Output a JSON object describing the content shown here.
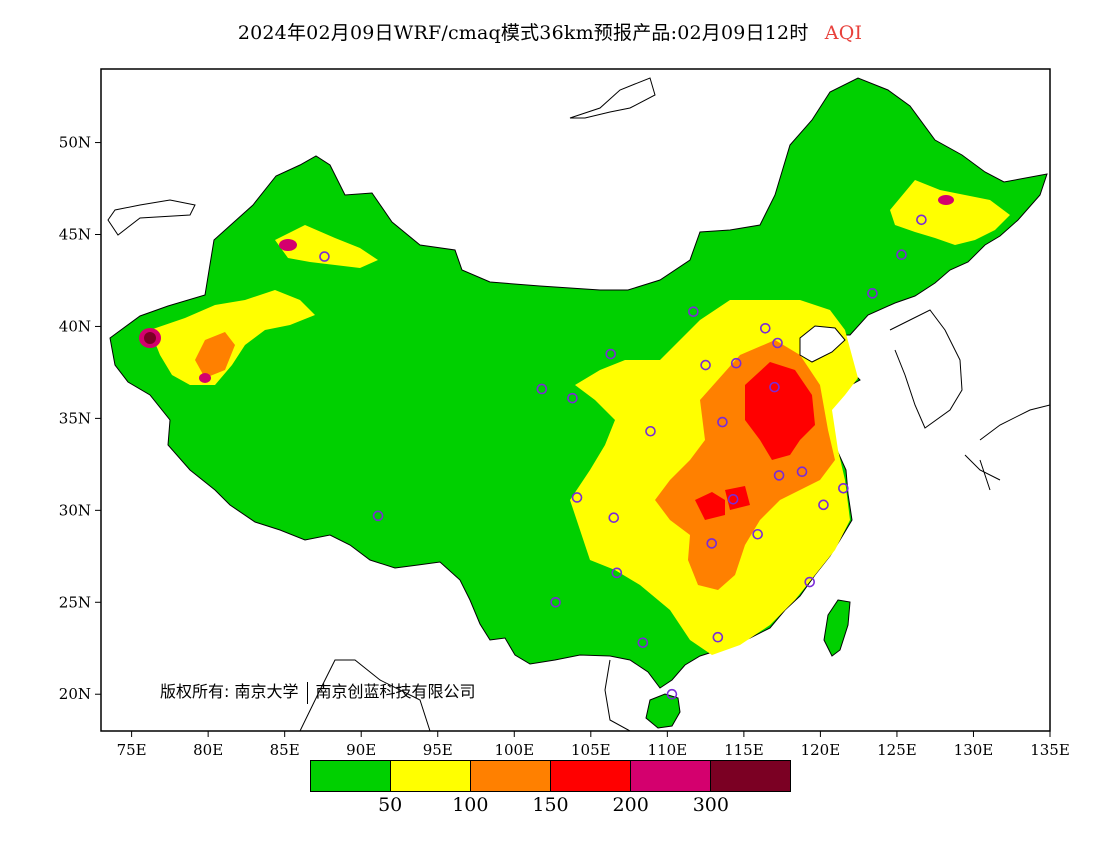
{
  "title": {
    "main": "2024年02月09日WRF/cmaq模式36km预报产品:02月09日12时",
    "product": "AQI",
    "product_color": "#e8413c"
  },
  "map": {
    "lon_range": [
      73,
      135
    ],
    "lat_range": [
      18,
      54
    ],
    "lon_ticks": [
      "75E",
      "80E",
      "85E",
      "90E",
      "95E",
      "100E",
      "105E",
      "110E",
      "115E",
      "120E",
      "125E",
      "130E",
      "135E"
    ],
    "lat_ticks": [
      "20N",
      "25N",
      "30N",
      "35N",
      "40N",
      "45N",
      "50N"
    ],
    "copyright_prefix": "版权所有:",
    "copyright_org1": "南京大学",
    "copyright_org2": "南京创蓝科技有限公司"
  },
  "legend": {
    "colors": [
      "#00d000",
      "#ffff00",
      "#ff8000",
      "#ff0000",
      "#d4006e",
      "#7b0023"
    ],
    "labels": [
      "50",
      "100",
      "150",
      "200",
      "300"
    ]
  },
  "stations": [
    [
      87.6,
      43.8
    ],
    [
      91.1,
      29.7
    ],
    [
      101.8,
      36.6
    ],
    [
      103.8,
      36.1
    ],
    [
      106.3,
      38.5
    ],
    [
      104.1,
      30.7
    ],
    [
      106.5,
      29.6
    ],
    [
      106.7,
      26.6
    ],
    [
      102.7,
      25.0
    ],
    [
      108.4,
      22.8
    ],
    [
      110.3,
      20.0
    ],
    [
      111.7,
      40.8
    ],
    [
      112.5,
      37.9
    ],
    [
      114.5,
      38.0
    ],
    [
      116.4,
      39.9
    ],
    [
      117.2,
      39.1
    ],
    [
      117.0,
      36.7
    ],
    [
      113.6,
      34.8
    ],
    [
      108.9,
      34.3
    ],
    [
      114.3,
      30.6
    ],
    [
      112.9,
      28.2
    ],
    [
      115.9,
      28.7
    ],
    [
      117.3,
      31.9
    ],
    [
      118.8,
      32.1
    ],
    [
      120.2,
      30.3
    ],
    [
      121.5,
      31.2
    ],
    [
      119.3,
      26.1
    ],
    [
      113.3,
      23.1
    ],
    [
      123.4,
      41.8
    ],
    [
      125.3,
      43.9
    ],
    [
      126.6,
      45.8
    ]
  ]
}
